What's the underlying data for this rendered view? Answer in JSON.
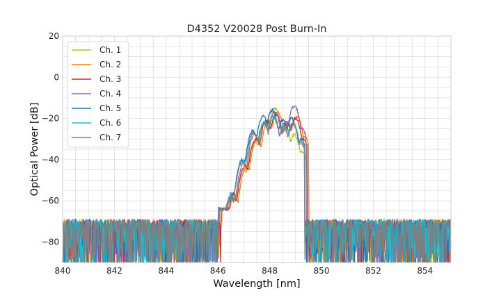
{
  "chart_data": {
    "type": "line",
    "title": "D4352 V20028 Post Burn-In",
    "xlabel": "Wavelength [nm]",
    "ylabel": "Optical Power [dB]",
    "xlim": [
      840,
      855
    ],
    "ylim": [
      -90,
      20
    ],
    "xticks": [
      "840",
      "842",
      "844",
      "846",
      "848",
      "850",
      "852",
      "854"
    ],
    "yticks": [
      "20",
      "0",
      "−20",
      "−40",
      "−60",
      "−80"
    ],
    "grid": true,
    "legend_position": "top-left",
    "noise_floor_db": -80,
    "series": [
      {
        "name": "Ch. 1",
        "color": "#bcbd22",
        "peaks": [
          [
            846.0,
            -63
          ],
          [
            846.55,
            -58
          ],
          [
            847.0,
            -45
          ],
          [
            847.42,
            -31
          ],
          [
            847.82,
            -22
          ],
          [
            848.2,
            -15
          ],
          [
            848.6,
            -24
          ],
          [
            848.95,
            -28
          ],
          [
            849.25,
            -36
          ]
        ],
        "cutoff": [
          846.05,
          849.45
        ]
      },
      {
        "name": "Ch. 2",
        "color": "#ff7f0e",
        "peaks": [
          [
            846.1,
            -63
          ],
          [
            846.65,
            -58
          ],
          [
            847.1,
            -44
          ],
          [
            847.52,
            -30
          ],
          [
            847.95,
            -21
          ],
          [
            848.3,
            -17
          ],
          [
            848.7,
            -22
          ],
          [
            849.05,
            -19
          ],
          [
            849.35,
            -29
          ]
        ],
        "cutoff": [
          846.15,
          849.5
        ]
      },
      {
        "name": "Ch. 3",
        "color": "#d62728",
        "peaks": [
          [
            846.05,
            -63
          ],
          [
            846.6,
            -58
          ],
          [
            847.05,
            -43
          ],
          [
            847.47,
            -30
          ],
          [
            847.88,
            -21
          ],
          [
            848.25,
            -18
          ],
          [
            848.65,
            -22
          ],
          [
            849.0,
            -20
          ],
          [
            849.3,
            -30
          ]
        ],
        "cutoff": [
          846.1,
          849.45
        ]
      },
      {
        "name": "Ch. 4",
        "color": "#9467bd",
        "peaks": [
          [
            846.0,
            -63
          ],
          [
            846.55,
            -58
          ],
          [
            847.0,
            -42
          ],
          [
            847.42,
            -28
          ],
          [
            847.82,
            -21
          ],
          [
            848.2,
            -17
          ],
          [
            848.6,
            -22
          ],
          [
            848.95,
            -14
          ],
          [
            849.25,
            -25
          ]
        ],
        "cutoff": [
          846.05,
          849.4
        ]
      },
      {
        "name": "Ch. 5",
        "color": "#1f77b4",
        "peaks": [
          [
            845.95,
            -63
          ],
          [
            846.5,
            -58
          ],
          [
            846.95,
            -40
          ],
          [
            847.35,
            -26
          ],
          [
            847.75,
            -19
          ],
          [
            848.1,
            -16
          ],
          [
            848.5,
            -21
          ],
          [
            848.85,
            -20
          ],
          [
            849.2,
            -30
          ]
        ],
        "cutoff": [
          846.0,
          849.35
        ]
      },
      {
        "name": "Ch. 6",
        "color": "#17becf",
        "peaks": [
          [
            845.95,
            -63
          ],
          [
            846.5,
            -58
          ],
          [
            846.95,
            -41
          ],
          [
            847.38,
            -27
          ],
          [
            847.78,
            -22
          ],
          [
            848.15,
            -19
          ],
          [
            848.55,
            -24
          ],
          [
            848.9,
            -22
          ],
          [
            849.2,
            -31
          ]
        ],
        "cutoff": [
          846.0,
          849.35
        ]
      },
      {
        "name": "Ch. 7",
        "color": "#7f7f7f",
        "peaks": [
          [
            845.95,
            -64
          ],
          [
            846.5,
            -59
          ],
          [
            846.95,
            -41
          ],
          [
            847.38,
            -27
          ],
          [
            847.78,
            -23
          ],
          [
            848.15,
            -20
          ],
          [
            848.55,
            -25
          ],
          [
            848.9,
            -23
          ],
          [
            849.2,
            -32
          ]
        ],
        "cutoff": [
          846.0,
          849.35
        ]
      }
    ]
  }
}
